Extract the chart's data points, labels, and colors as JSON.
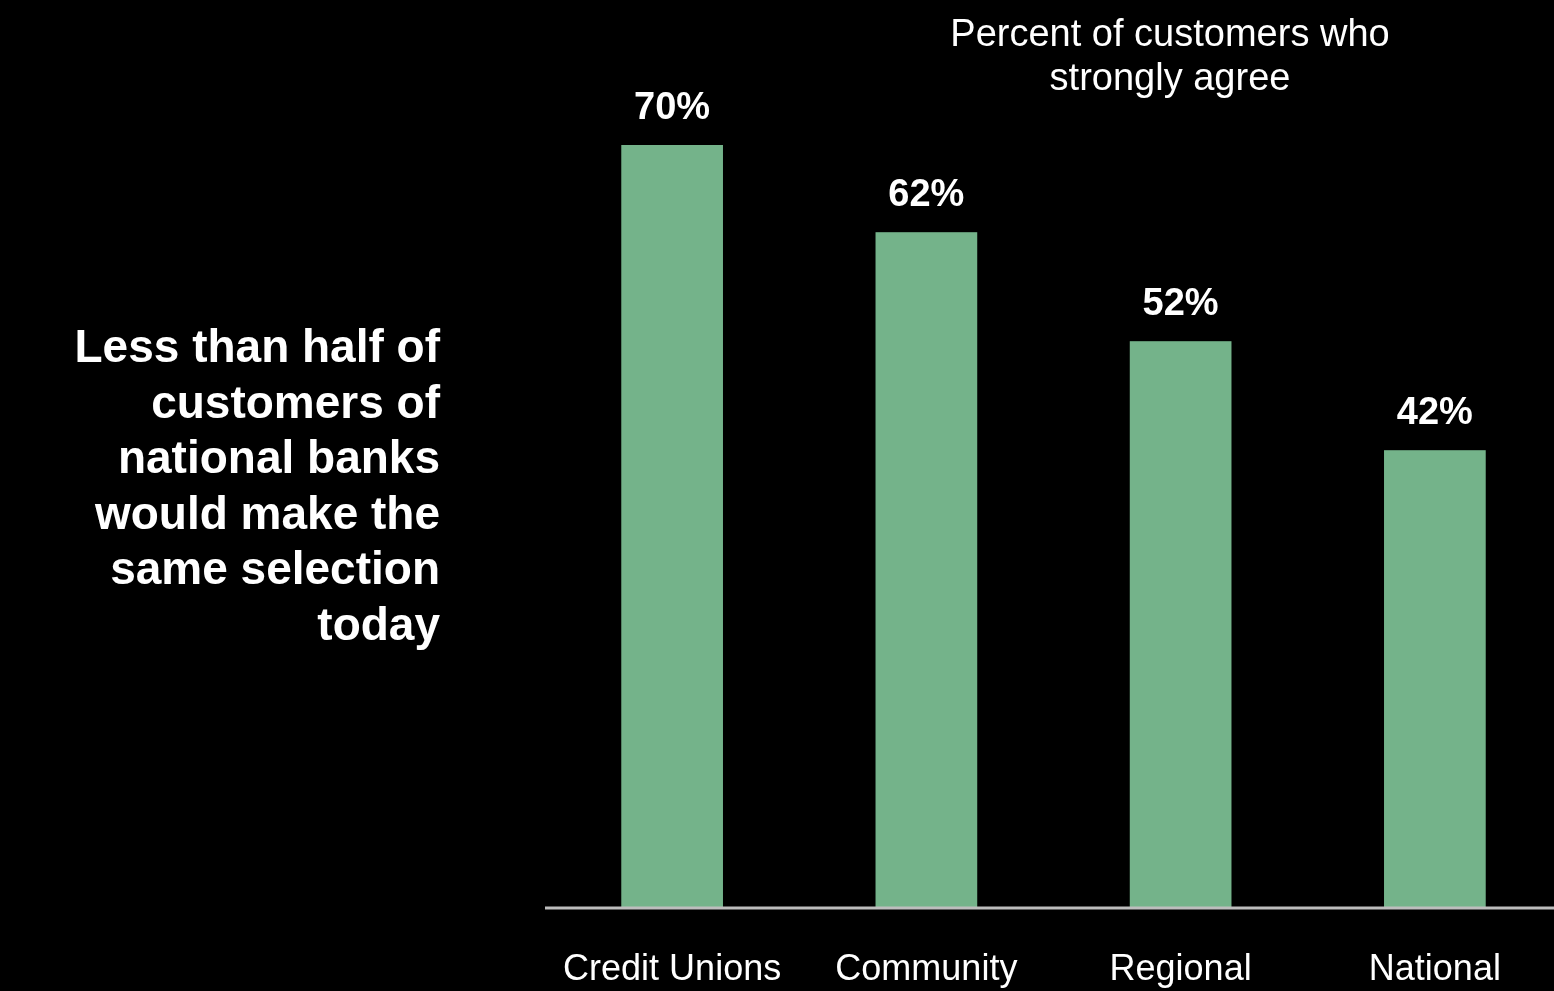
{
  "chart_data": {
    "type": "bar",
    "title": "Percent of customers who strongly agree",
    "categories": [
      "Credit Unions",
      "Community",
      "Regional",
      "National"
    ],
    "values": [
      70,
      62,
      52,
      42
    ],
    "value_labels": [
      "70%",
      "62%",
      "52%",
      "42%"
    ],
    "color": "#74b38a",
    "annotations": [
      "Less than half of customers of national banks would make the same selection today"
    ]
  }
}
